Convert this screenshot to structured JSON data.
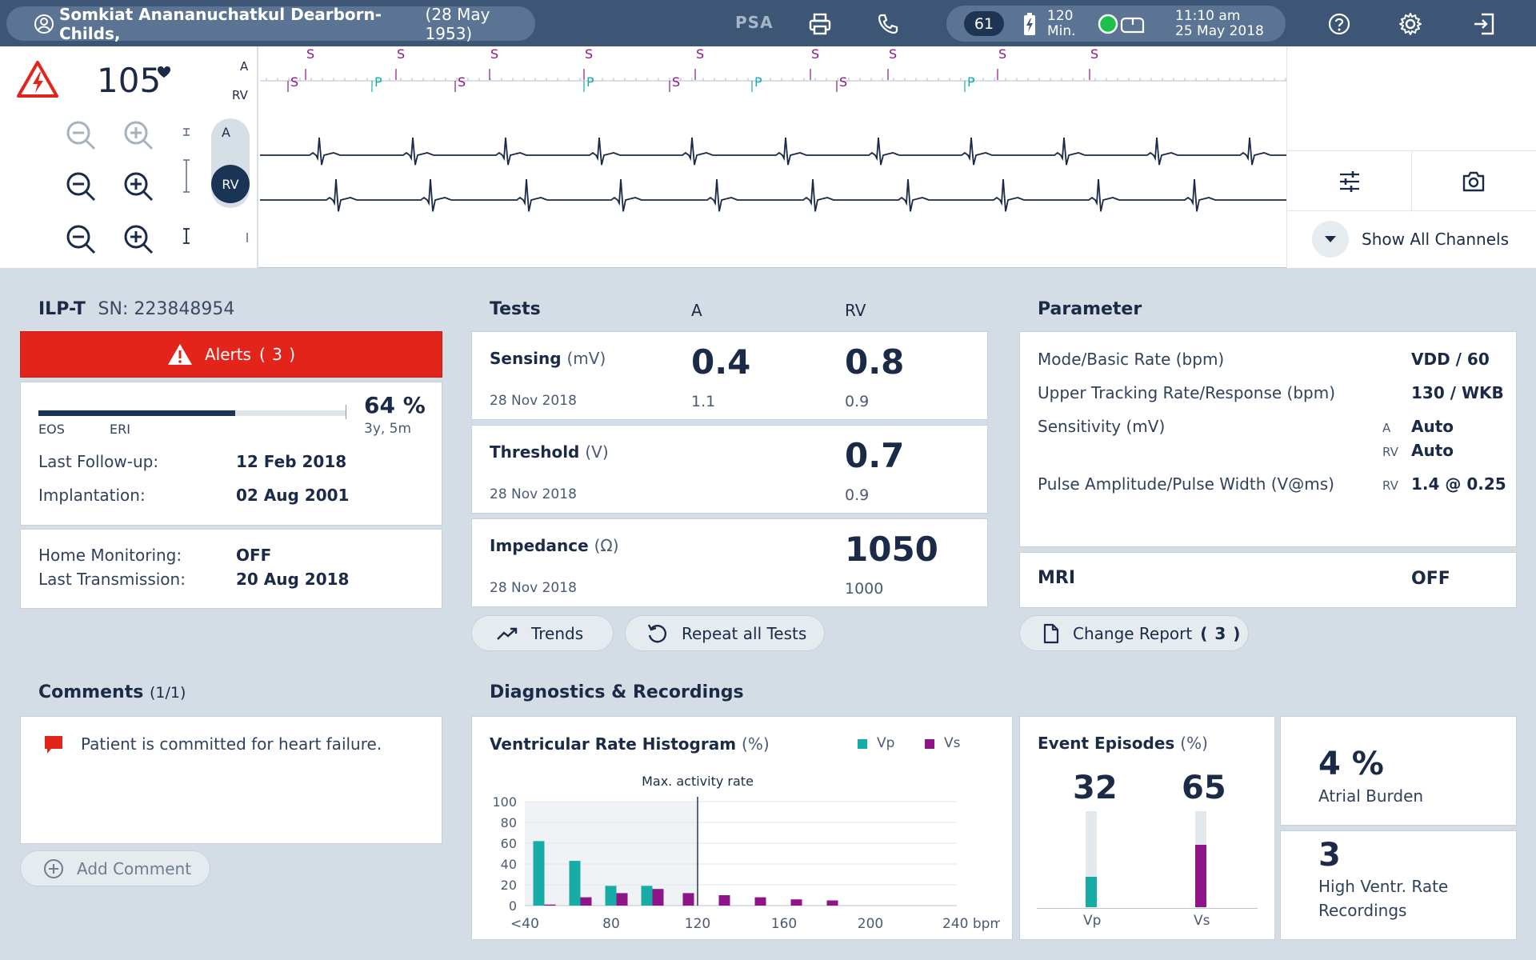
{
  "patient": {
    "name": "Somkiat Anananuchatkul Dearborn-Childs,",
    "dob": "(28 May 1953)"
  },
  "topbar": {
    "mode": "PSA",
    "heart_rate": "61",
    "battery_value": "120",
    "battery_unit": "Min.",
    "time": "11:10 am",
    "date": "25 May 2018"
  },
  "ecg": {
    "rate": "105",
    "channel_a": "A",
    "channel_rv": "RV",
    "toggle_a": "A",
    "toggle_rv": "RV",
    "marker_s": "S",
    "marker_p": "P",
    "show_all": "Show All Channels"
  },
  "device": {
    "model": "ILP-T",
    "serial": "SN: 223848954",
    "alerts": "Alerts",
    "alerts_count": "( 3 )",
    "battery_percent": "64 %",
    "battery_fill": 0.64,
    "battery_remaining": "3y, 5m",
    "eos": "EOS",
    "eri": "ERI",
    "last_followup_label": "Last Follow-up:",
    "last_followup": "12 Feb 2018",
    "implantation_label": "Implantation:",
    "implantation": "02 Aug 2001",
    "home_monitoring_label": "Home Monitoring:",
    "home_monitoring": "OFF",
    "last_transmission_label": "Last Transmission:",
    "last_transmission": "20 Aug 2018"
  },
  "tests": {
    "title": "Tests",
    "col_a": "A",
    "col_rv": "RV",
    "sensing": {
      "label": "Sensing",
      "unit": "(mV)",
      "date": "28 Nov 2018",
      "a": "0.4",
      "a_prev": "1.1",
      "rv": "0.8",
      "rv_prev": "0.9"
    },
    "threshold": {
      "label": "Threshold",
      "unit": "(V)",
      "date": "28 Nov 2018",
      "rv": "0.7",
      "rv_prev": "0.9"
    },
    "impedance": {
      "label": "Impedance",
      "unit": "(Ω)",
      "date": "28 Nov 2018",
      "rv": "1050",
      "rv_prev": "1000"
    },
    "trends": "Trends",
    "repeat": "Repeat all Tests"
  },
  "parameter": {
    "title": "Parameter",
    "rows": [
      {
        "label": "Mode/Basic Rate (bpm)",
        "value": "VDD / 60"
      },
      {
        "label": "Upper Tracking Rate/Response (bpm)",
        "value": "130 / WKB"
      },
      {
        "label": "Sensitivity (mV)",
        "ch1": "A",
        "value1": "Auto",
        "ch2": "RV",
        "value2": "Auto"
      },
      {
        "label": "Pulse Amplitude/Pulse Width (V@ms)",
        "ch": "RV",
        "value": "1.4 @ 0.25"
      }
    ],
    "mri_label": "MRI",
    "mri_value": "OFF",
    "change_report": "Change Report",
    "change_report_count": "( 3 )"
  },
  "comments": {
    "title": "Comments",
    "count": "(1/1)",
    "items": [
      "Patient is committed for heart failure."
    ],
    "add": "Add Comment"
  },
  "diagnostics": {
    "title": "Diagnostics & Recordings",
    "histogram_title": "Ventricular Rate Histogram",
    "histogram_unit": "(%)",
    "legend_vp": "Vp",
    "legend_vs": "Vs",
    "max_activity": "Max. activity rate",
    "event_title": "Event Episodes",
    "event_unit": "(%)",
    "event_vp": "32",
    "event_vs": "65",
    "event_vp_label": "Vp",
    "event_vs_label": "Vs",
    "atrial_burden_value": "4 %",
    "atrial_burden_label": "Atrial Burden",
    "hvr_value": "3",
    "hvr_label1": "High Ventr. Rate",
    "hvr_label2": "Recordings"
  },
  "colors": {
    "vp": "#17ada6",
    "vs": "#8e1488",
    "alert": "#e3241b",
    "navy": "#1b3354"
  },
  "chart_data": {
    "type": "bar",
    "title": "Ventricular Rate Histogram (%)",
    "xlabel": "bpm",
    "ylabel": "",
    "ylim": [
      0,
      100
    ],
    "yticks": [
      "100",
      "80",
      "60",
      "40",
      "20",
      "0"
    ],
    "xticks": [
      "<40",
      "80",
      "120",
      "160",
      "200",
      "240 bpm"
    ],
    "categories": [
      "<40",
      "60",
      "80",
      "100",
      "120",
      "140",
      "160",
      "180",
      "200"
    ],
    "series": [
      {
        "name": "Vp",
        "values": [
          62,
          43,
          19,
          19,
          0,
          0,
          0,
          0,
          0
        ]
      },
      {
        "name": "Vs",
        "values": [
          1,
          8,
          12,
          16,
          12,
          10,
          8,
          6,
          5
        ]
      }
    ],
    "max_activity_rate": 120
  }
}
